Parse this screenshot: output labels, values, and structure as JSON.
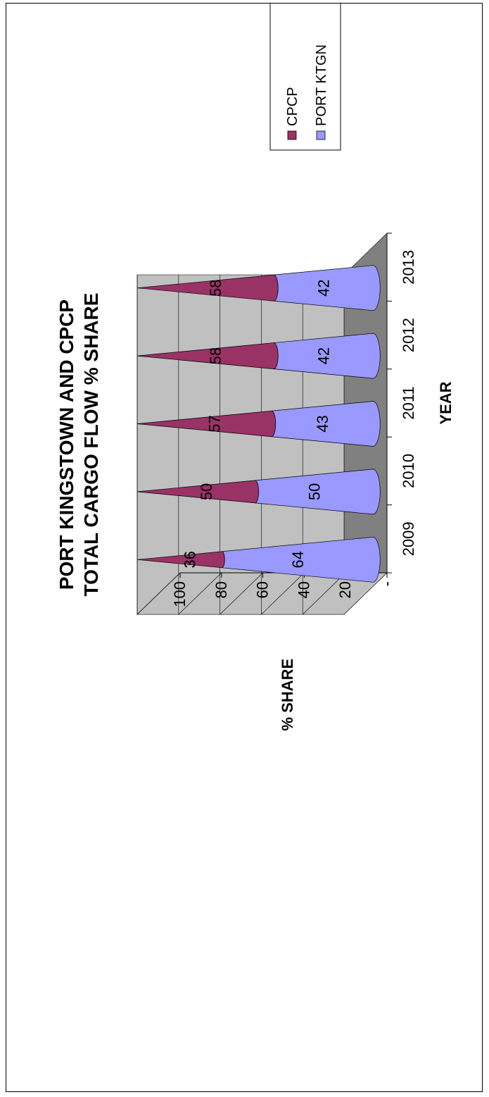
{
  "chart_data": {
    "type": "bar",
    "title_lines": [
      "PORT KINGSTOWN AND CPCP",
      "TOTAL CARGO FLOW % SHARE"
    ],
    "xlabel": "YEAR",
    "ylabel": "% SHARE",
    "categories": [
      "2009",
      "2010",
      "2011",
      "2012",
      "2013"
    ],
    "series": [
      {
        "name": "CPCP",
        "values": [
          36,
          50,
          57,
          58,
          58
        ],
        "color": "#993366"
      },
      {
        "name": "PORT KTGN",
        "values": [
          64,
          50,
          43,
          42,
          42
        ],
        "color": "#9999FF"
      }
    ],
    "ylim": [
      0,
      100
    ],
    "yticks": [
      "-",
      "20",
      "40",
      "60",
      "80",
      "100"
    ],
    "stacked": "percent",
    "mark_shape": "cone",
    "grid": true,
    "legend_position": "top-right",
    "orientation": "rotated-90-ccw"
  }
}
